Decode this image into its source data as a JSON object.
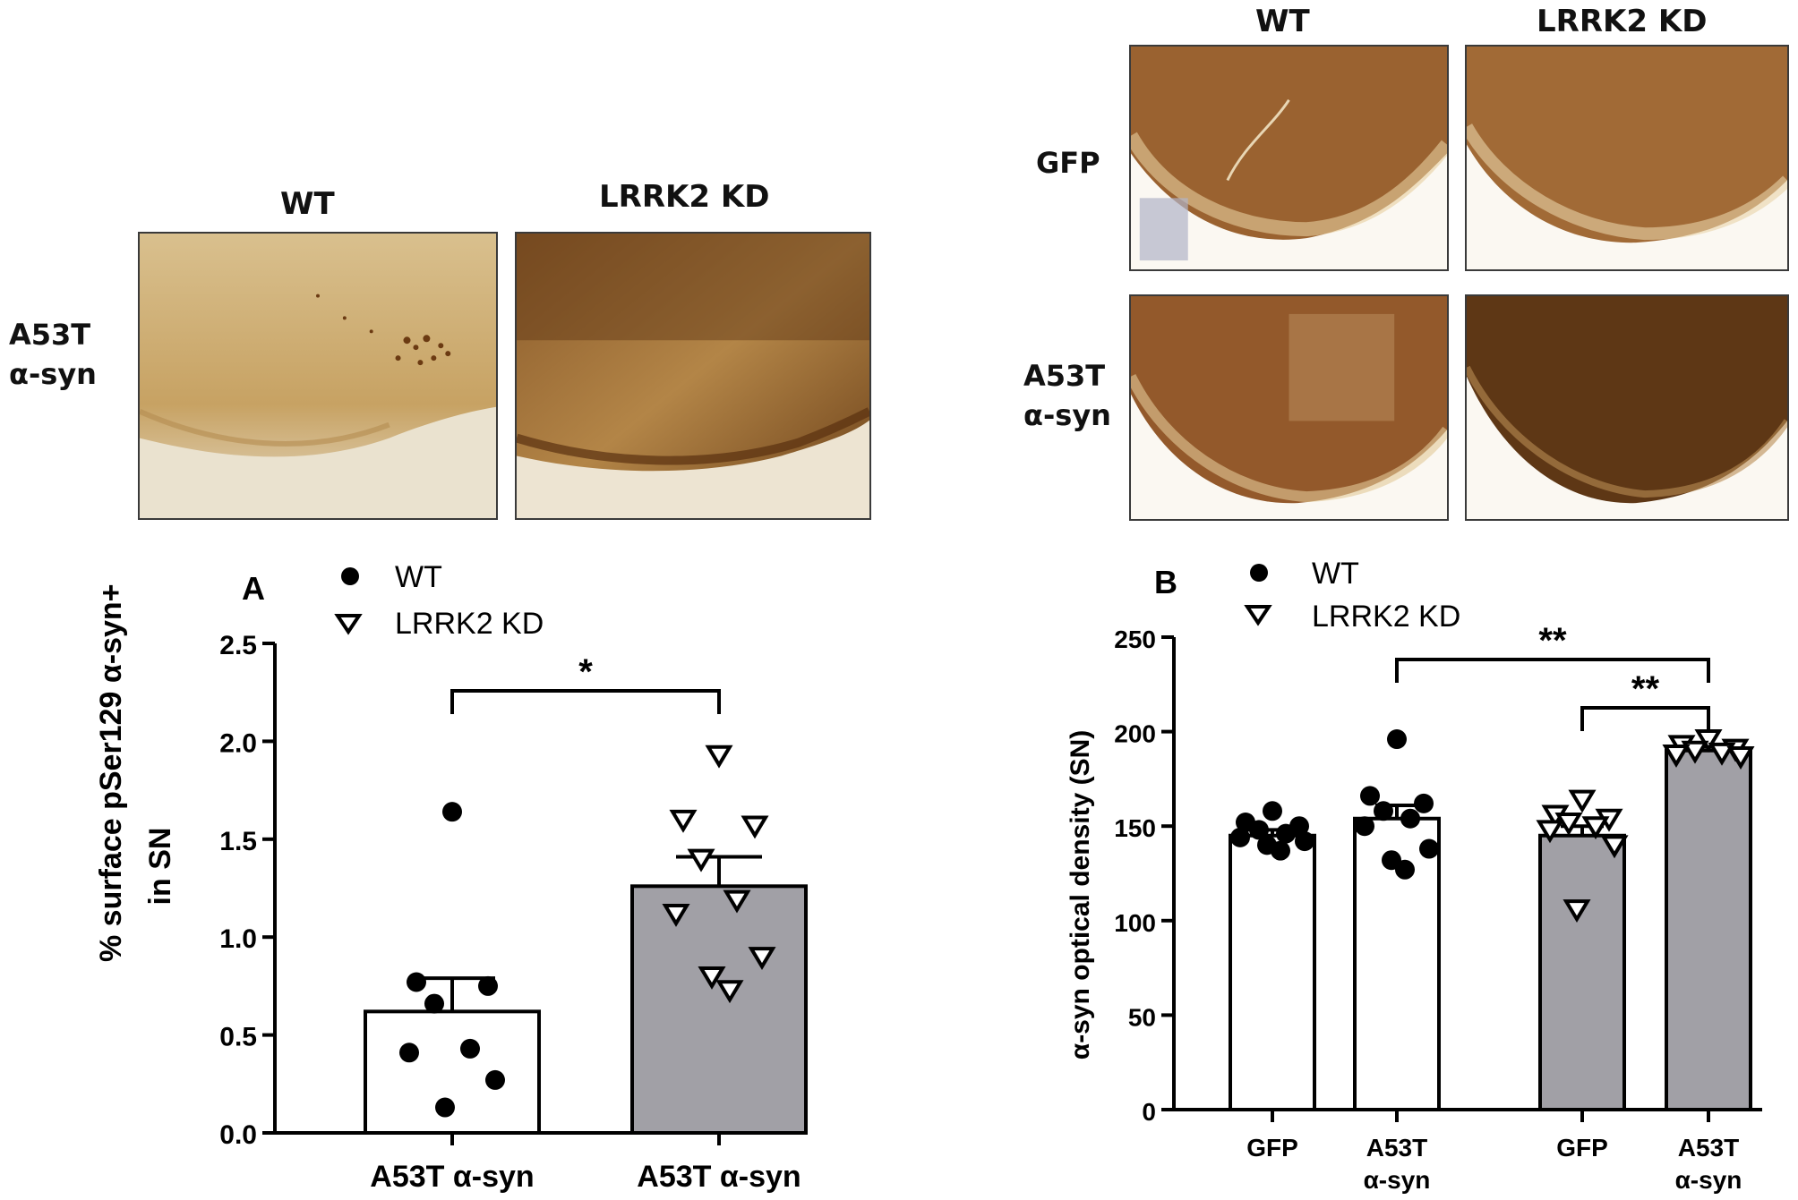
{
  "left_images": {
    "col_labels": [
      "WT",
      "LRRK2 KD"
    ],
    "row_label_line1": "A53T",
    "row_label_line2": "α-syn"
  },
  "right_images": {
    "col_labels": [
      "WT",
      "LRRK2 KD"
    ],
    "row_labels": [
      {
        "line1": "GFP",
        "line2": ""
      },
      {
        "line1": "A53T",
        "line2": "α-syn"
      }
    ]
  },
  "chart_data": [
    {
      "type": "bar",
      "panel_letter": "A",
      "ylabel_line1": "% surface pSer129 α-syn+",
      "ylabel_line2": "in SN",
      "ylim": [
        0,
        2.5
      ],
      "yticks": [
        "0.0",
        "0.5",
        "1.0",
        "1.5",
        "2.0",
        "2.5"
      ],
      "ytick_values": [
        0,
        0.5,
        1.0,
        1.5,
        2.0,
        2.5
      ],
      "legend": [
        {
          "name": "WT",
          "marker": "filled-circle"
        },
        {
          "name": "LRRK2 KD",
          "marker": "open-triangle-down"
        }
      ],
      "categories": [
        "A53T α-syn",
        "A53T α-syn"
      ],
      "series": [
        {
          "name": "WT",
          "value": 0.62,
          "sem": 0.17,
          "fill": "#ffffff",
          "points": [
            1.64,
            0.77,
            0.75,
            0.66,
            0.43,
            0.41,
            0.27,
            0.13
          ]
        },
        {
          "name": "LRRK2 KD",
          "value": 1.26,
          "sem": 0.15,
          "fill": "#a1a0a6",
          "points": [
            1.93,
            1.6,
            1.57,
            1.4,
            1.19,
            1.12,
            0.9,
            0.8,
            0.73
          ]
        }
      ],
      "significance": [
        {
          "from": 0,
          "to": 1,
          "label": "*"
        }
      ]
    },
    {
      "type": "bar",
      "panel_letter": "B",
      "ylabel": "α-syn optical density (SN)",
      "ylim": [
        0,
        250
      ],
      "yticks": [
        "0",
        "50",
        "100",
        "150",
        "200",
        "250"
      ],
      "ytick_values": [
        0,
        50,
        100,
        150,
        200,
        250
      ],
      "legend": [
        {
          "name": "WT",
          "marker": "filled-circle"
        },
        {
          "name": "LRRK2 KD",
          "marker": "open-triangle-down"
        }
      ],
      "categories": [
        {
          "line1": "GFP",
          "line2": ""
        },
        {
          "line1": "A53T",
          "line2": "α-syn"
        },
        {
          "line1": "GFP",
          "line2": ""
        },
        {
          "line1": "A53T",
          "line2": "α-syn"
        }
      ],
      "series": [
        {
          "name": "WT",
          "value": 145,
          "sem": 3,
          "fill": "#ffffff",
          "points": [
            158,
            152,
            150,
            148,
            146,
            144,
            142,
            140,
            137
          ]
        },
        {
          "name": "WT",
          "value": 154,
          "sem": 7,
          "fill": "#ffffff",
          "points": [
            196,
            166,
            162,
            158,
            154,
            150,
            138,
            132,
            127
          ]
        },
        {
          "name": "LRRK2 KD",
          "value": 145,
          "sem": 5,
          "fill": "#a1a0a6",
          "points": [
            164,
            156,
            154,
            152,
            150,
            148,
            140,
            106
          ]
        },
        {
          "name": "LRRK2 KD",
          "value": 190,
          "sem": 2,
          "fill": "#a1a0a6",
          "points": [
            196,
            193,
            191,
            190,
            189,
            188,
            187
          ]
        }
      ],
      "significance": [
        {
          "from": 1,
          "to": 3,
          "label": "**"
        },
        {
          "from": 2,
          "to": 3,
          "label": "**"
        }
      ]
    }
  ]
}
